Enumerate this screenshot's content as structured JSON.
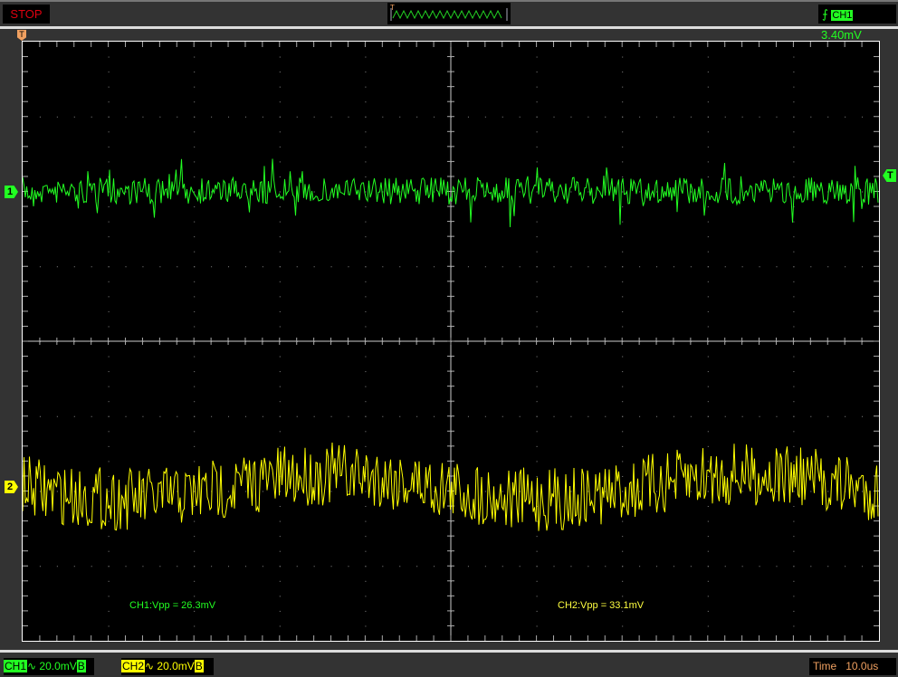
{
  "status": "STOP",
  "trigger": {
    "channel": "CH1",
    "level": "3.40mV",
    "edge": "rising",
    "marker": "T",
    "color": "#22ff22"
  },
  "channels": [
    {
      "label": "CH1",
      "marker": "1",
      "scale": "20.0mV",
      "coupling_symbol": "∿",
      "bw": "B",
      "color": "#22ff22",
      "measurement": "CH1:Vpp = 26.3mV"
    },
    {
      "label": "CH2",
      "marker": "2",
      "scale": "20.0mV",
      "coupling_symbol": "∿",
      "bw": "B",
      "color": "#ffff00",
      "measurement": "CH2:Vpp = 33.1mV"
    }
  ],
  "timebase": {
    "label": "Time",
    "value": "10.0us"
  },
  "grid": {
    "h_divisions": 10,
    "v_divisions": 8
  }
}
